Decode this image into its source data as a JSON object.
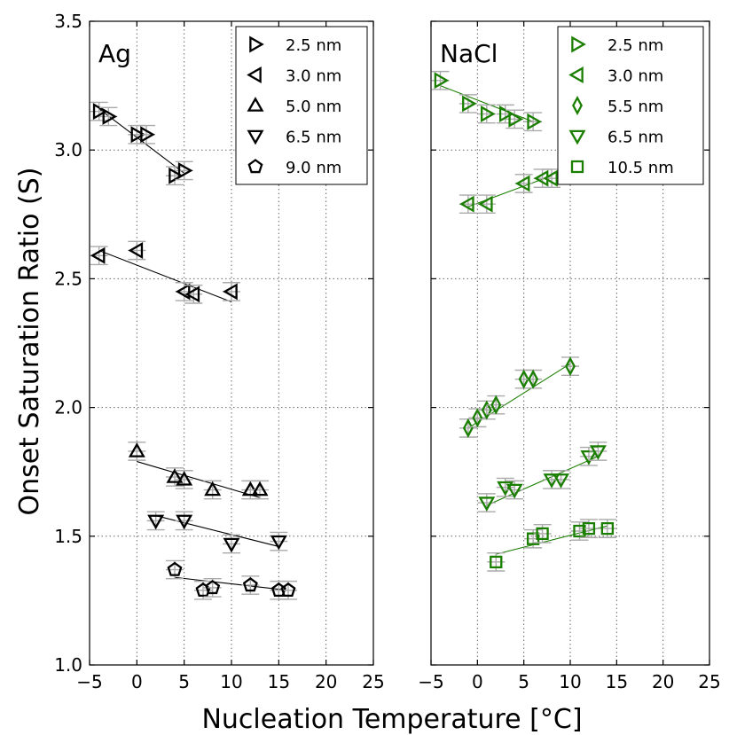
{
  "chart_data": {
    "type": "scatter",
    "ylabel": "Onset Saturation Ratio (S)",
    "xlabel": "Nucleation Temperature [°C]",
    "xlim": [
      -5,
      25
    ],
    "ylim": [
      1.0,
      3.5
    ],
    "xticks": [
      "−5",
      "0",
      "5",
      "10",
      "15",
      "20",
      "25"
    ],
    "yticks": [
      "1.0",
      "1.5",
      "2.0",
      "2.5",
      "3.0",
      "3.5"
    ],
    "grid": true,
    "panels": [
      {
        "title": "Ag",
        "color": "#000000",
        "legend_position": "top-right",
        "series": [
          {
            "name": "2.5 nm",
            "marker": "triangle-right",
            "x": [
              -4,
              -3,
              0,
              1,
              4,
              5
            ],
            "y": [
              3.15,
              3.13,
              3.06,
              3.06,
              2.9,
              2.92
            ],
            "fit": {
              "x": [
                -4,
                5
              ],
              "y": [
                3.16,
                2.91
              ]
            }
          },
          {
            "name": "3.0 nm",
            "marker": "triangle-left",
            "x": [
              -4,
              0,
              5,
              6,
              10
            ],
            "y": [
              2.59,
              2.61,
              2.45,
              2.44,
              2.45
            ],
            "fit": {
              "x": [
                -4,
                10
              ],
              "y": [
                2.61,
                2.41
              ]
            }
          },
          {
            "name": "5.0 nm",
            "marker": "triangle-up",
            "x": [
              0,
              4,
              5,
              8,
              12,
              13
            ],
            "y": [
              1.83,
              1.73,
              1.72,
              1.68,
              1.68,
              1.68
            ],
            "fit": {
              "x": [
                0,
                13
              ],
              "y": [
                1.79,
                1.65
              ]
            }
          },
          {
            "name": "6.5 nm",
            "marker": "triangle-down",
            "x": [
              2,
              5,
              10,
              15
            ],
            "y": [
              1.56,
              1.56,
              1.47,
              1.48
            ],
            "fit": {
              "x": [
                2,
                15
              ],
              "y": [
                1.58,
                1.46
              ]
            }
          },
          {
            "name": "9.0 nm",
            "marker": "pentagon",
            "x": [
              4,
              7,
              8,
              12,
              15,
              16
            ],
            "y": [
              1.37,
              1.29,
              1.3,
              1.31,
              1.29,
              1.29
            ],
            "fit": {
              "x": [
                4,
                16
              ],
              "y": [
                1.34,
                1.29
              ]
            }
          }
        ]
      },
      {
        "title": "NaCl",
        "color": "#1a7f00",
        "legend_position": "top-right",
        "series": [
          {
            "name": "2.5 nm",
            "marker": "triangle-right",
            "x": [
              -4,
              -1,
              1,
              3,
              4,
              6
            ],
            "y": [
              3.27,
              3.18,
              3.14,
              3.14,
              3.12,
              3.11
            ],
            "fit": {
              "x": [
                -4,
                6
              ],
              "y": [
                3.25,
                3.11
              ]
            }
          },
          {
            "name": "3.0 nm",
            "marker": "triangle-left",
            "x": [
              -1,
              1,
              5,
              7,
              8
            ],
            "y": [
              2.79,
              2.79,
              2.87,
              2.89,
              2.89
            ],
            "fit": {
              "x": [
                -1,
                8
              ],
              "y": [
                2.78,
                2.9
              ]
            }
          },
          {
            "name": "5.5 nm",
            "marker": "diamond",
            "x": [
              -1,
              0,
              1,
              2,
              5,
              6,
              10
            ],
            "y": [
              1.92,
              1.96,
              1.99,
              2.01,
              2.11,
              2.11,
              2.16
            ],
            "fit": {
              "x": [
                -1,
                10
              ],
              "y": [
                1.92,
                2.17
              ]
            }
          },
          {
            "name": "6.5 nm",
            "marker": "triangle-down",
            "x": [
              1,
              3,
              4,
              8,
              9,
              12,
              13
            ],
            "y": [
              1.63,
              1.69,
              1.68,
              1.72,
              1.72,
              1.81,
              1.83
            ],
            "fit": {
              "x": [
                1,
                13
              ],
              "y": [
                1.62,
                1.81
              ]
            }
          },
          {
            "name": "10.5 nm",
            "marker": "square",
            "x": [
              2,
              6,
              7,
              11,
              12,
              14
            ],
            "y": [
              1.4,
              1.49,
              1.51,
              1.52,
              1.53,
              1.53
            ],
            "fit": {
              "x": [
                2,
                14
              ],
              "y": [
                1.43,
                1.54
              ]
            }
          }
        ]
      }
    ]
  }
}
